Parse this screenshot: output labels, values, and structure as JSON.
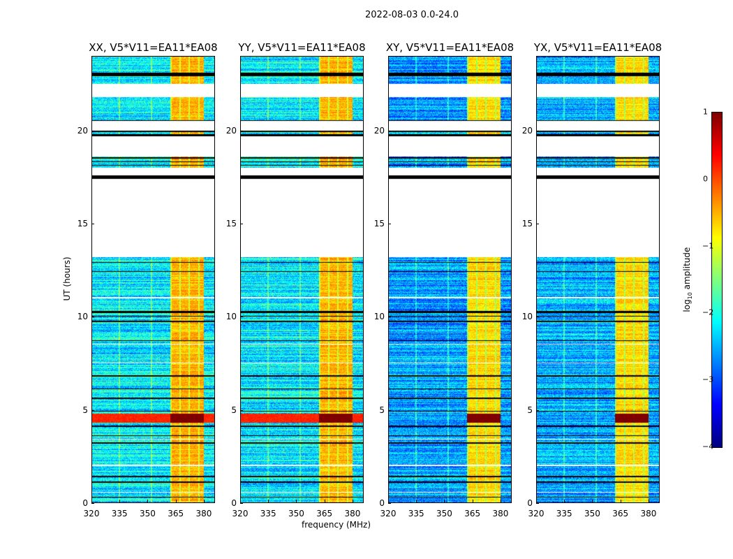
{
  "chart_data": {
    "type": "heatmap",
    "title": "2022-08-03 0.0-24.0",
    "xlabel": "frequency (MHz)",
    "ylabel": "UT (hours)",
    "xlim": [
      320,
      386
    ],
    "ylim": [
      0,
      24
    ],
    "xticks": [
      "320",
      "335",
      "350",
      "365",
      "380"
    ],
    "xtick_values": [
      320,
      335,
      350,
      365,
      380
    ],
    "yticks": [
      "0",
      "5",
      "10",
      "15",
      "20"
    ],
    "ytick_values": [
      0,
      5,
      10,
      15,
      20
    ],
    "colorbar": {
      "label_main": "log",
      "label_sub": "10",
      "label_rest": " amplitude",
      "range": [
        -4,
        1
      ],
      "ticks": [
        "1",
        "0",
        "−1",
        "−2",
        "−3",
        "−4"
      ],
      "tick_values": [
        1,
        0,
        -1,
        -2,
        -3,
        -4
      ],
      "colormap": "jet"
    },
    "panels": [
      {
        "title": "XX, V5*V11=EA11*EA08",
        "background": -2.2,
        "rfi": -0.5,
        "storm_full": true
      },
      {
        "title": "YY, V5*V11=EA11*EA08",
        "background": -2.2,
        "rfi": -0.5,
        "storm_full": true
      },
      {
        "title": "XY, V5*V11=EA11*EA08",
        "background": -2.6,
        "rfi": -0.7,
        "storm_full": false
      },
      {
        "title": "YX, V5*V11=EA11*EA08",
        "background": -2.5,
        "rfi": -0.7,
        "storm_full": false
      }
    ],
    "rfi_band_mhz": [
      362,
      380
    ],
    "storm_hours": [
      4.3,
      4.8
    ],
    "storm_level": 1.0,
    "flagged_hours": [
      [
        13.2,
        17.4
      ],
      [
        17.6,
        18.0
      ],
      [
        18.6,
        19.7
      ],
      [
        20.0,
        20.5
      ],
      [
        21.8,
        22.5
      ]
    ],
    "black_hours": [
      [
        17.4,
        17.6
      ],
      [
        18.1,
        18.15
      ],
      [
        18.3,
        18.35
      ],
      [
        18.5,
        18.55
      ],
      [
        19.7,
        19.8
      ],
      [
        19.9,
        20.0
      ],
      [
        20.5,
        20.55
      ],
      [
        22.9,
        23.1
      ],
      [
        9.7,
        9.8
      ],
      [
        10.0,
        10.05
      ],
      [
        10.2,
        10.3
      ],
      [
        8.7,
        8.75
      ],
      [
        6.1,
        6.15
      ],
      [
        6.8,
        6.85
      ],
      [
        5.6,
        5.65
      ],
      [
        4.9,
        4.95
      ],
      [
        4.1,
        4.15
      ],
      [
        3.6,
        3.65
      ],
      [
        3.2,
        3.25
      ],
      [
        1.4,
        1.45
      ],
      [
        1.1,
        1.15
      ],
      [
        0.3,
        0.35
      ],
      [
        12.4,
        12.45
      ],
      [
        12.9,
        12.95
      ]
    ],
    "white_hours": [
      [
        2.0,
        2.05
      ],
      [
        3.4,
        3.45
      ],
      [
        7.5,
        7.55
      ],
      [
        8.5,
        8.55
      ],
      [
        11.0,
        11.05
      ],
      [
        0.55,
        0.6
      ]
    ]
  }
}
